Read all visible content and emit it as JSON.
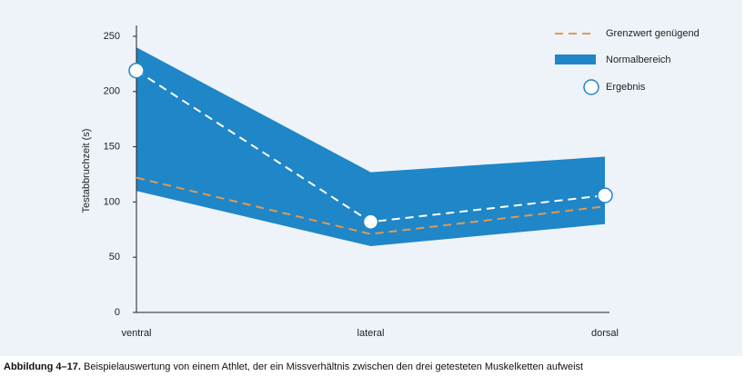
{
  "chart_data": {
    "type": "band-line",
    "ylabel": "Testabbruchzeit (s)",
    "categories": [
      "ventral",
      "lateral",
      "dorsal"
    ],
    "ylim": [
      0,
      250
    ],
    "yticks": [
      0,
      50,
      100,
      150,
      200,
      250
    ],
    "band": {
      "name": "Normalbereich",
      "color": "#1f86c8",
      "lower": [
        110,
        60,
        80
      ],
      "upper": [
        240,
        127,
        141
      ]
    },
    "series": [
      {
        "name": "Grenzwert genügend",
        "color": "#e39a4f",
        "style": "dashed",
        "values": [
          122,
          71,
          96
        ]
      },
      {
        "name": "Ergebnis",
        "color": "#ffffff",
        "style": "dashed-markers",
        "values": [
          219,
          82,
          106
        ]
      }
    ],
    "legend": "top-right"
  },
  "caption": {
    "label": "Abbildung 4–17.",
    "text": "Beispielauswertung von einem Athlet, der ein Missverhältnis zwischen den drei getesteten Muskelketten aufweist"
  }
}
